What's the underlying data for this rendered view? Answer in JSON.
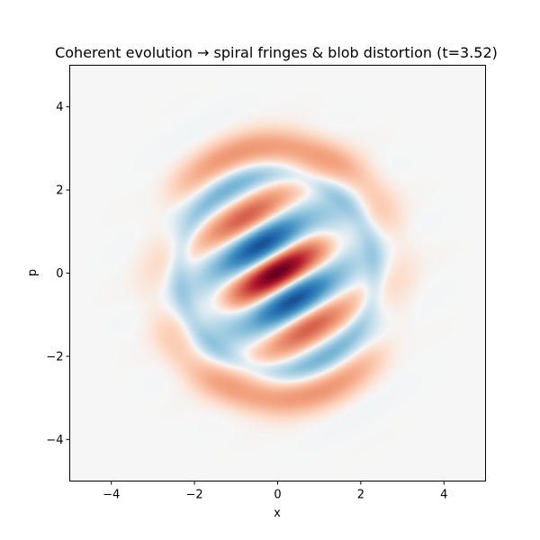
{
  "chart_data": {
    "type": "heatmap",
    "title": "Coherent evolution → spiral fringes & blob distortion (t=3.52)",
    "xlabel": "x",
    "ylabel": "p",
    "xlim": [
      -5,
      5
    ],
    "ylim": [
      -5,
      5
    ],
    "x_ticks": [
      -4,
      -2,
      0,
      2,
      4
    ],
    "y_ticks": [
      -4,
      -2,
      0,
      2,
      4
    ],
    "x_tick_labels": [
      "−4",
      "−2",
      "0",
      "2",
      "4"
    ],
    "y_tick_labels": [
      "−4",
      "−2",
      "0",
      "2",
      "4"
    ],
    "grid": false,
    "colormap": "RdBu diverging (negative = red, positive = blue)",
    "colors": {
      "positive_extreme": "#053061",
      "negative_extreme": "#67001f",
      "neutral": "#f7f7f7"
    },
    "features": [
      {
        "kind": "outer_ring",
        "sign": "negative",
        "center": [
          0,
          0
        ],
        "radius": 3.0,
        "width": 0.42,
        "amplitude": 0.3,
        "arc_center_deg": 90,
        "arc_halfwidth_deg": 55
      },
      {
        "kind": "outer_ring",
        "sign": "negative",
        "center": [
          0,
          0
        ],
        "radius": 3.0,
        "width": 0.42,
        "amplitude": 0.3,
        "arc_center_deg": 270,
        "arc_halfwidth_deg": 55
      },
      {
        "kind": "inner_ring",
        "sign": "positive",
        "center": [
          0,
          0
        ],
        "radius": 2.35,
        "width": 0.25,
        "amplitude": 0.15
      },
      {
        "kind": "fringe_core",
        "center": [
          0,
          0
        ],
        "extent": 1.9,
        "tilt_deg": 60,
        "frequency": 3.9,
        "amplitude": 1.0
      },
      {
        "kind": "side_lobe",
        "sign": "positive",
        "center": [
          1.5,
          1.0
        ],
        "amplitude": 0.2
      },
      {
        "kind": "side_lobe",
        "sign": "positive",
        "center": [
          -1.5,
          -1.0
        ],
        "amplitude": 0.2
      },
      {
        "kind": "side_lobe",
        "sign": "positive",
        "center": [
          -2.5,
          1.5
        ],
        "amplitude": 0.06
      },
      {
        "kind": "side_lobe",
        "sign": "positive",
        "center": [
          2.5,
          -1.5
        ],
        "amplitude": 0.06
      }
    ]
  }
}
